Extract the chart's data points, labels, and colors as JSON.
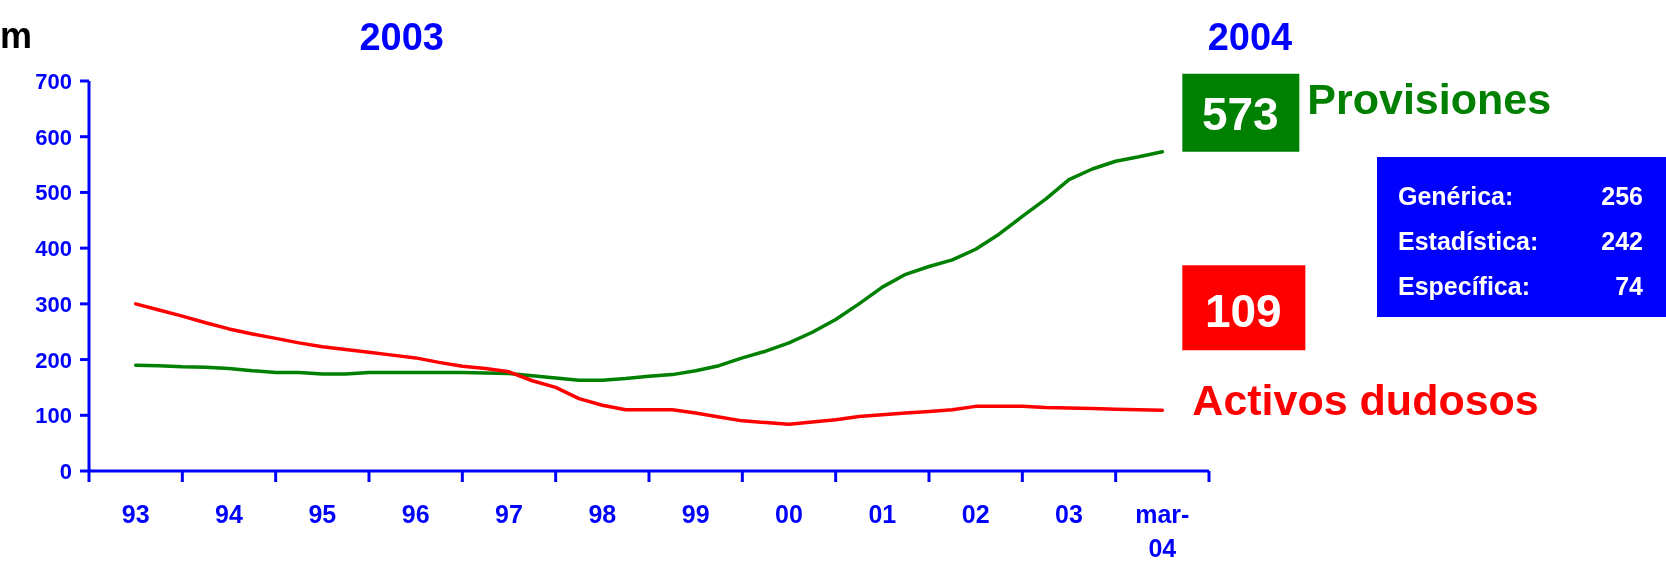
{
  "chart_data": {
    "type": "line",
    "ylabel": "m",
    "annotations": [
      "2003",
      "2004",
      "Genérica:     256",
      "Estadística: 242",
      "Específica:     74"
    ],
    "categories": [
      "93",
      null,
      null,
      null,
      "94",
      null,
      null,
      null,
      "95",
      null,
      null,
      null,
      "96",
      null,
      null,
      null,
      "97",
      null,
      null,
      null,
      "98",
      null,
      null,
      null,
      "99",
      null,
      null,
      null,
      "00",
      null,
      null,
      null,
      "01",
      null,
      null,
      null,
      "02",
      null,
      null,
      null,
      "03",
      null,
      null,
      null,
      "mar-04"
    ],
    "ylim": [
      0,
      700
    ],
    "yticks": [
      0,
      100,
      200,
      300,
      400,
      500,
      600,
      700
    ],
    "grid": false,
    "legend": "right",
    "marker": "none",
    "line_style": "solid",
    "series": [
      {
        "name": "Provisiones",
        "color": "#008000",
        "values": [
          190,
          189,
          187,
          186,
          184,
          180,
          177,
          177,
          174,
          174,
          177,
          177,
          177,
          177,
          177,
          176,
          175,
          171,
          167,
          163,
          163,
          166,
          170,
          173,
          180,
          189,
          203,
          215,
          230,
          249,
          272,
          300,
          330,
          353,
          367,
          379,
          398,
          425,
          457,
          488,
          523,
          542,
          556,
          564,
          573
        ],
        "value_labels": [
          null,
          null,
          null,
          null,
          null,
          null,
          null,
          null,
          null,
          null,
          null,
          null,
          null,
          null,
          null,
          null,
          null,
          null,
          null,
          null,
          null,
          null,
          null,
          null,
          null,
          null,
          null,
          null,
          null,
          null,
          null,
          null,
          null,
          null,
          null,
          null,
          null,
          null,
          null,
          null,
          null,
          null,
          null,
          null,
          "573"
        ]
      },
      {
        "name": "Activos dudosos",
        "color": "#ff0000",
        "values": [
          300,
          289,
          278,
          266,
          255,
          246,
          238,
          230,
          223,
          218,
          213,
          208,
          203,
          195,
          188,
          184,
          178,
          162,
          150,
          130,
          118,
          110,
          110,
          110,
          104,
          97,
          90,
          87,
          84,
          88,
          92,
          98,
          101,
          104,
          107,
          110,
          116,
          116,
          116,
          114,
          113,
          112,
          111,
          110,
          109
        ],
        "value_labels": [
          null,
          null,
          null,
          null,
          null,
          null,
          null,
          null,
          null,
          null,
          null,
          null,
          null,
          null,
          null,
          null,
          null,
          null,
          null,
          null,
          null,
          null,
          null,
          null,
          null,
          null,
          null,
          null,
          null,
          null,
          null,
          null,
          null,
          null,
          null,
          null,
          null,
          null,
          null,
          null,
          null,
          null,
          null,
          null,
          "109"
        ]
      }
    ]
  }
}
